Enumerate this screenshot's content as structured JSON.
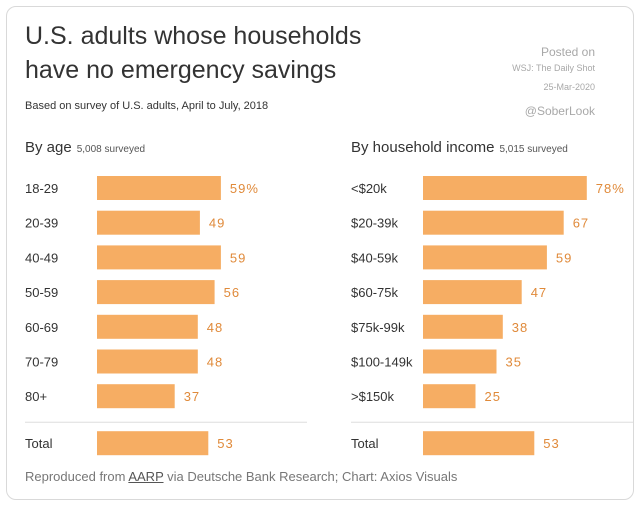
{
  "header": {
    "title_line1": "U.S. adults whose households",
    "title_line2": "have no emergency savings",
    "subtitle": "Based on survey of U.S. adults, April to July, 2018",
    "posted_on": "Posted on",
    "posted_source": "WSJ: The Daily Shot",
    "posted_date": "25-Mar-2020",
    "handle": "@SoberLook"
  },
  "footer": {
    "prefix": "Reproduced from ",
    "link": "AARP",
    "suffix": " via Deutsche Bank Research; Chart: Axios Visuals"
  },
  "chart_data": [
    {
      "type": "bar",
      "orientation": "horizontal",
      "title": "By age",
      "subtitle": "5,008 surveyed",
      "unit": "%",
      "categories": [
        "18-29",
        "20-39",
        "40-49",
        "50-59",
        "60-69",
        "70-79",
        "80+"
      ],
      "values": [
        59,
        49,
        59,
        56,
        48,
        48,
        37
      ],
      "value_labels": [
        "59%",
        "49",
        "59",
        "56",
        "48",
        "48",
        "37"
      ],
      "total": {
        "label": "Total",
        "value": 53,
        "value_label": "53"
      },
      "bar_color": "#f6ad63",
      "label_color": "#e08a3a"
    },
    {
      "type": "bar",
      "orientation": "horizontal",
      "title": "By household income",
      "subtitle": "5,015 surveyed",
      "unit": "%",
      "categories": [
        "<$20k",
        "$20-39k",
        "$40-59k",
        "$60-75k",
        "$75k-99k",
        "$100-149k",
        ">$150k"
      ],
      "values": [
        78,
        67,
        59,
        47,
        38,
        35,
        25
      ],
      "value_labels": [
        "78%",
        "67",
        "59",
        "47",
        "38",
        "35",
        "25"
      ],
      "total": {
        "label": "Total",
        "value": 53,
        "value_label": "53"
      },
      "bar_color": "#f6ad63",
      "label_color": "#e08a3a"
    }
  ]
}
